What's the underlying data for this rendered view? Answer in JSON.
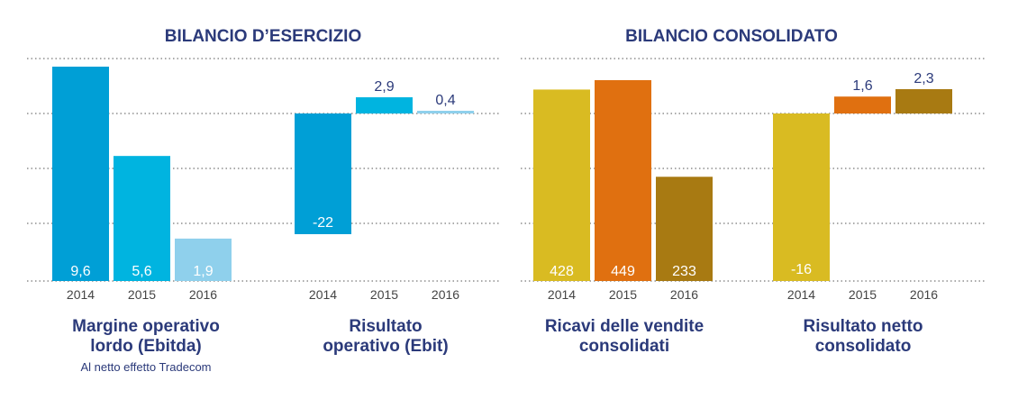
{
  "sections": [
    {
      "title": "BILANCIO D’ESERCIZIO"
    },
    {
      "title": "BILANCIO CONSOLIDATO"
    }
  ],
  "chart_data": [
    {
      "type": "bar",
      "title": "Margine operativo lordo (Ebitda)",
      "title_lines": [
        "Margine operativo",
        "lordo (Ebitda)"
      ],
      "subtitle": "Al netto effetto Tradecom",
      "categories": [
        "2014",
        "2015",
        "2016"
      ],
      "values": [
        9.6,
        5.6,
        1.9
      ],
      "value_labels": [
        "9,6",
        "5,6",
        "1,9"
      ],
      "colors": [
        "#009fd6",
        "#00b4e0",
        "#8fd0ec"
      ],
      "ylim": [
        0,
        9.6
      ],
      "grid": true
    },
    {
      "type": "bar",
      "title": "Risultato operativo (Ebit)",
      "title_lines": [
        "Risultato",
        "operativo (Ebit)"
      ],
      "subtitle": "",
      "categories": [
        "2014",
        "2015",
        "2016"
      ],
      "values": [
        -22,
        2.9,
        0.4
      ],
      "value_labels": [
        "-22",
        "2,9",
        "0,4"
      ],
      "colors": [
        "#009fd6",
        "#00b4e0",
        "#8fd0ec"
      ],
      "ylim": [
        -22,
        2.9
      ],
      "grid": true
    },
    {
      "type": "bar",
      "title": "Ricavi delle vendite consolidati",
      "title_lines": [
        "Ricavi delle vendite",
        "consolidati"
      ],
      "subtitle": "",
      "categories": [
        "2014",
        "2015",
        "2016"
      ],
      "values": [
        428,
        449,
        233
      ],
      "value_labels": [
        "428",
        "449",
        "233"
      ],
      "colors": [
        "#d9bb22",
        "#e07010",
        "#a87a12"
      ],
      "ylim": [
        0,
        449
      ],
      "grid": true
    },
    {
      "type": "bar",
      "title": "Risultato netto consolidato",
      "title_lines": [
        "Risultato netto",
        "consolidato"
      ],
      "subtitle": "",
      "categories": [
        "2014",
        "2015",
        "2016"
      ],
      "values": [
        -16,
        1.6,
        2.3
      ],
      "value_labels": [
        "-16",
        "1,6",
        "2,3"
      ],
      "colors": [
        "#d9bb22",
        "#e07010",
        "#a87a12"
      ],
      "ylim": [
        -16,
        2.3
      ],
      "grid": true
    }
  ]
}
